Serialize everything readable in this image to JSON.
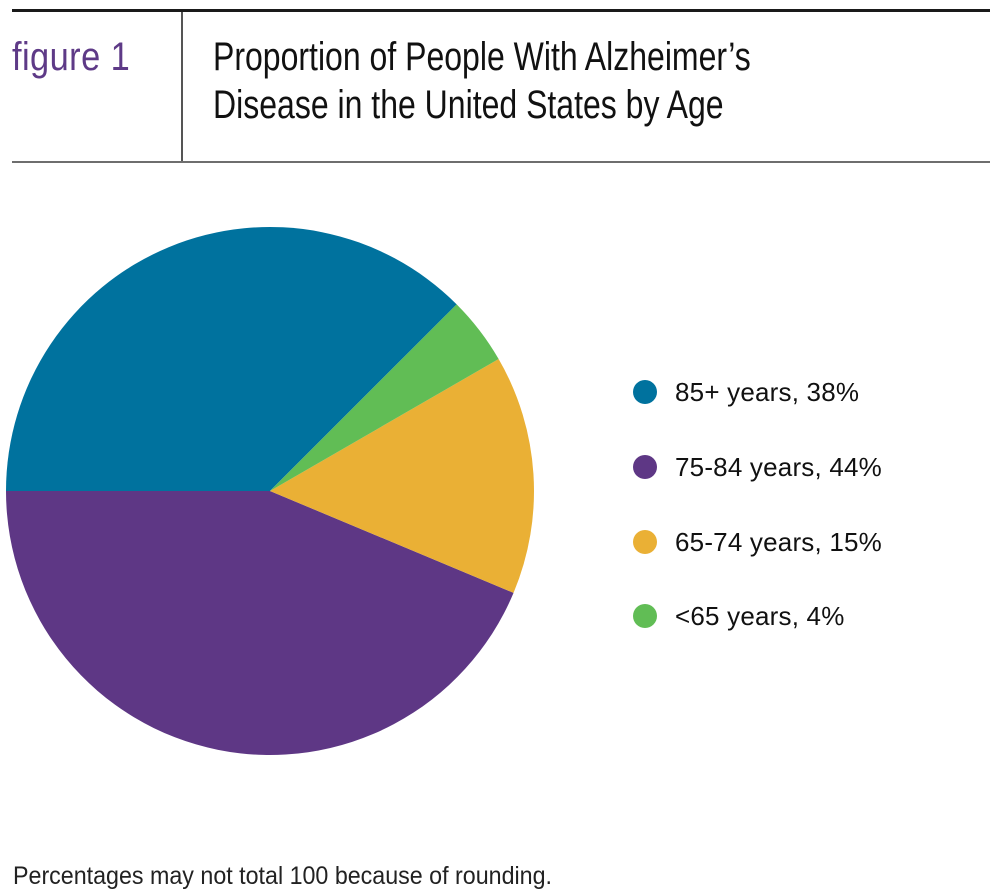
{
  "header": {
    "figure_label": "figure 1",
    "title_lines": [
      "Proportion of People With Alzheimer’s",
      "Disease in the United States by Age"
    ]
  },
  "legend": {
    "items": [
      {
        "label": "85+ years, 38%",
        "color": "#00729e"
      },
      {
        "label": "75-84 years, 44%",
        "color": "#5e3785"
      },
      {
        "label": "65-74 years, 15%",
        "color": "#eab035"
      },
      {
        "label": "<65 years, 4%",
        "color": "#61bd55"
      }
    ]
  },
  "footnote": "Percentages may not total 100 because of rounding.",
  "colors": {
    "figure_label": "#5e3a87",
    "blue": "#00729e",
    "purple": "#5e3785",
    "yellow": "#eab035",
    "green": "#61bd55"
  },
  "chart_data": {
    "type": "pie",
    "title": "Proportion of People With Alzheimer’s Disease in the United States by Age",
    "figure_label": "figure 1",
    "categories": [
      "85+ years",
      "75-84 years",
      "65-74 years",
      "<65 years"
    ],
    "values": [
      38,
      44,
      15,
      4
    ],
    "unit": "%",
    "colors": [
      "#00729e",
      "#5e3785",
      "#eab035",
      "#61bd55"
    ],
    "legend_position": "right",
    "note": "Percentages may not total 100 because of rounding.",
    "layout": {
      "center": [
        270,
        491
      ],
      "radius": 264,
      "slice_angles_deg": [
        {
          "category": "85+ years",
          "start": 45,
          "end": 180
        },
        {
          "category": "75-84 years",
          "start": 180,
          "end": 337.3
        },
        {
          "category": "65-74 years",
          "start": -22.7,
          "end": 30
        },
        {
          "category": "<65 years",
          "start": 30,
          "end": 45
        }
      ]
    }
  }
}
